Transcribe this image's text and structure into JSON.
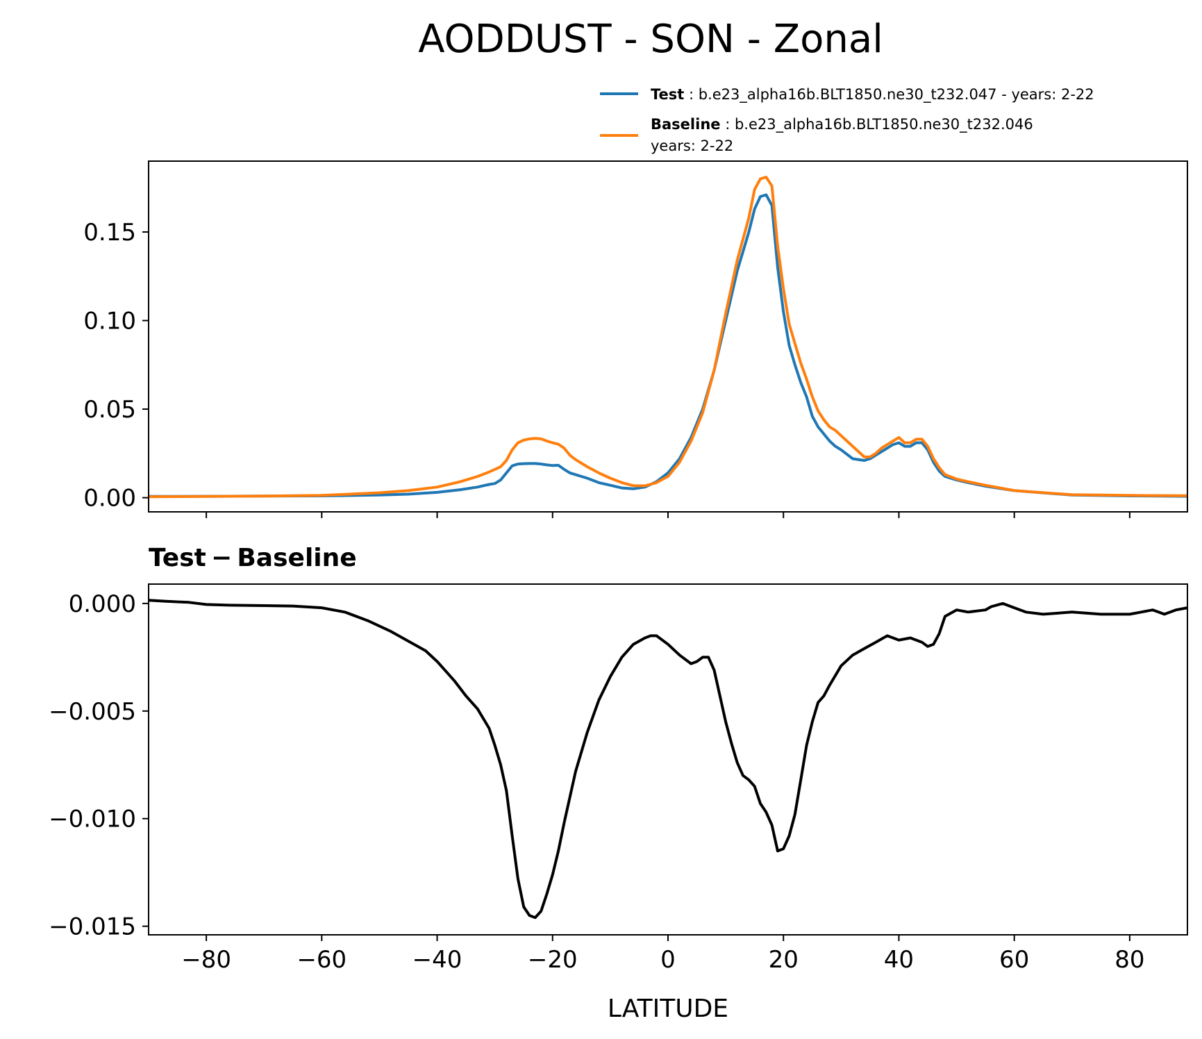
{
  "chart_data": [
    {
      "type": "line",
      "title": "AODDUST - SON - Zonal",
      "xlabel": "",
      "ylabel": "",
      "xlim": [
        -90,
        90
      ],
      "ylim": [
        -0.008,
        0.19
      ],
      "yticks": [
        0.0,
        0.05,
        0.1,
        0.15
      ],
      "ytick_labels": [
        "0.00",
        "0.05",
        "0.10",
        "0.15"
      ],
      "xticks": [
        -80,
        -60,
        -40,
        -20,
        0,
        20,
        40,
        60,
        80
      ],
      "legend": {
        "placement": "above-right",
        "entries": [
          {
            "key": "Test",
            "label_bold": "Test",
            "label_rest": " : b.e23_alpha16b.BLT1850.ne30_t232.047 - years: 2-22",
            "label_line2": "",
            "color": "#1f77b4"
          },
          {
            "key": "Baseline",
            "label_bold": "Baseline",
            "label_rest": " : b.e23_alpha16b.BLT1850.ne30_t232.046",
            "label_line2": "years: 2-22",
            "color": "#ff7f0e"
          }
        ]
      },
      "x": [
        -90,
        -80,
        -70,
        -60,
        -50,
        -45,
        -40,
        -36,
        -33,
        -31,
        -30,
        -29,
        -28,
        -27,
        -26,
        -25,
        -24,
        -23,
        -22,
        -21,
        -20,
        -19,
        -18,
        -17,
        -16,
        -14,
        -12,
        -10,
        -8,
        -6,
        -4,
        -2,
        0,
        2,
        4,
        6,
        8,
        10,
        12,
        14,
        15,
        16,
        17,
        18,
        19,
        20,
        21,
        22,
        23,
        24,
        25,
        26,
        27,
        28,
        29,
        30,
        32,
        34,
        35,
        36,
        37,
        38,
        39,
        40,
        41,
        42,
        43,
        44,
        45,
        46,
        47,
        48,
        50,
        52,
        55,
        60,
        70,
        80,
        90
      ],
      "series": [
        {
          "name": "Test",
          "color": "#1f77b4",
          "values": [
            0.0007,
            0.0008,
            0.0009,
            0.001,
            0.0015,
            0.002,
            0.003,
            0.0045,
            0.006,
            0.0075,
            0.008,
            0.01,
            0.014,
            0.018,
            0.019,
            0.0192,
            0.0193,
            0.0193,
            0.019,
            0.0185,
            0.0182,
            0.0183,
            0.016,
            0.014,
            0.013,
            0.011,
            0.0085,
            0.007,
            0.0055,
            0.005,
            0.006,
            0.009,
            0.014,
            0.022,
            0.034,
            0.05,
            0.072,
            0.1,
            0.128,
            0.15,
            0.163,
            0.17,
            0.171,
            0.165,
            0.13,
            0.105,
            0.086,
            0.075,
            0.065,
            0.057,
            0.046,
            0.04,
            0.036,
            0.032,
            0.029,
            0.027,
            0.022,
            0.021,
            0.022,
            0.024,
            0.026,
            0.028,
            0.03,
            0.031,
            0.029,
            0.029,
            0.031,
            0.031,
            0.027,
            0.02,
            0.015,
            0.012,
            0.01,
            0.0085,
            0.0065,
            0.004,
            0.0015,
            0.001,
            0.0008
          ]
        },
        {
          "name": "Baseline",
          "color": "#ff7f0e",
          "values": [
            0.0005,
            0.0007,
            0.0009,
            0.0013,
            0.0028,
            0.004,
            0.006,
            0.009,
            0.012,
            0.0145,
            0.016,
            0.0175,
            0.021,
            0.027,
            0.031,
            0.0325,
            0.0332,
            0.0335,
            0.0332,
            0.032,
            0.031,
            0.0302,
            0.028,
            0.024,
            0.0215,
            0.0175,
            0.014,
            0.011,
            0.0085,
            0.0068,
            0.0067,
            0.0085,
            0.012,
            0.02,
            0.032,
            0.048,
            0.072,
            0.104,
            0.134,
            0.158,
            0.174,
            0.18,
            0.181,
            0.176,
            0.142,
            0.118,
            0.098,
            0.087,
            0.076,
            0.067,
            0.057,
            0.049,
            0.044,
            0.04,
            0.038,
            0.035,
            0.029,
            0.023,
            0.023,
            0.025,
            0.028,
            0.03,
            0.032,
            0.034,
            0.031,
            0.031,
            0.033,
            0.033,
            0.029,
            0.022,
            0.017,
            0.013,
            0.0105,
            0.009,
            0.007,
            0.004,
            0.0017,
            0.0013,
            0.0011
          ]
        }
      ]
    },
    {
      "type": "line",
      "title": "Test − Baseline",
      "xlabel": "LATITUDE",
      "ylabel": "",
      "xlim": [
        -90,
        90
      ],
      "ylim": [
        -0.0154,
        0.0009
      ],
      "yticks": [
        0.0,
        -0.005,
        -0.01,
        -0.015
      ],
      "ytick_labels": [
        "0.000",
        "−0.005",
        "−0.010",
        "−0.015"
      ],
      "xticks": [
        -80,
        -60,
        -40,
        -20,
        0,
        20,
        40,
        60,
        80
      ],
      "xtick_labels": [
        "−80",
        "−60",
        "−40",
        "−20",
        "0",
        "20",
        "40",
        "60",
        "80"
      ],
      "x": [
        -90,
        -87,
        -83,
        -80,
        -76,
        -70,
        -65,
        -60,
        -56,
        -52,
        -48,
        -44,
        -42,
        -40,
        -37,
        -35,
        -33,
        -31,
        -30,
        -29,
        -28,
        -27,
        -26,
        -25,
        -24,
        -23,
        -22,
        -21,
        -20,
        -19,
        -18,
        -16,
        -14,
        -12,
        -10,
        -8,
        -6,
        -4,
        -3,
        -2,
        0,
        2,
        4,
        5,
        6,
        7,
        8,
        10,
        11,
        12,
        13,
        14,
        15,
        16,
        17,
        18,
        19,
        20,
        21,
        22,
        23,
        24,
        25,
        26,
        27,
        28,
        30,
        32,
        34,
        36,
        38,
        40,
        42,
        43,
        44,
        45,
        46,
        47,
        48,
        50,
        52,
        55,
        56,
        58,
        60,
        62,
        65,
        70,
        75,
        80,
        82,
        84,
        85,
        86,
        88,
        90
      ],
      "series": [
        {
          "name": "Test - Baseline",
          "color": "#000000",
          "values": [
            0.00015,
            0.0001,
            5e-05,
            -5e-05,
            -8e-05,
            -0.0001,
            -0.00012,
            -0.0002,
            -0.0004,
            -0.0008,
            -0.0013,
            -0.0019,
            -0.0022,
            -0.0027,
            -0.0036,
            -0.0043,
            -0.0049,
            -0.0058,
            -0.0066,
            -0.0075,
            -0.0087,
            -0.0108,
            -0.0128,
            -0.0141,
            -0.0145,
            -0.0146,
            -0.0143,
            -0.0135,
            -0.0126,
            -0.0115,
            -0.0102,
            -0.0078,
            -0.006,
            -0.0045,
            -0.0034,
            -0.0025,
            -0.0019,
            -0.0016,
            -0.0015,
            -0.0015,
            -0.0019,
            -0.0024,
            -0.0028,
            -0.0027,
            -0.0025,
            -0.0025,
            -0.0031,
            -0.0055,
            -0.0065,
            -0.0074,
            -0.008,
            -0.0082,
            -0.0085,
            -0.0093,
            -0.0097,
            -0.0103,
            -0.0115,
            -0.0114,
            -0.0108,
            -0.0098,
            -0.0082,
            -0.0066,
            -0.0055,
            -0.0046,
            -0.0043,
            -0.0038,
            -0.0029,
            -0.0024,
            -0.0021,
            -0.0018,
            -0.0015,
            -0.0017,
            -0.0016,
            -0.0017,
            -0.0018,
            -0.002,
            -0.0019,
            -0.0014,
            -0.0006,
            -0.0003,
            -0.0004,
            -0.0003,
            -0.00015,
            0.0,
            -0.0002,
            -0.0004,
            -0.0005,
            -0.0004,
            -0.0005,
            -0.0005,
            -0.0004,
            -0.0003,
            -0.0004,
            -0.0005,
            -0.0003,
            -0.0002
          ]
        }
      ]
    }
  ]
}
